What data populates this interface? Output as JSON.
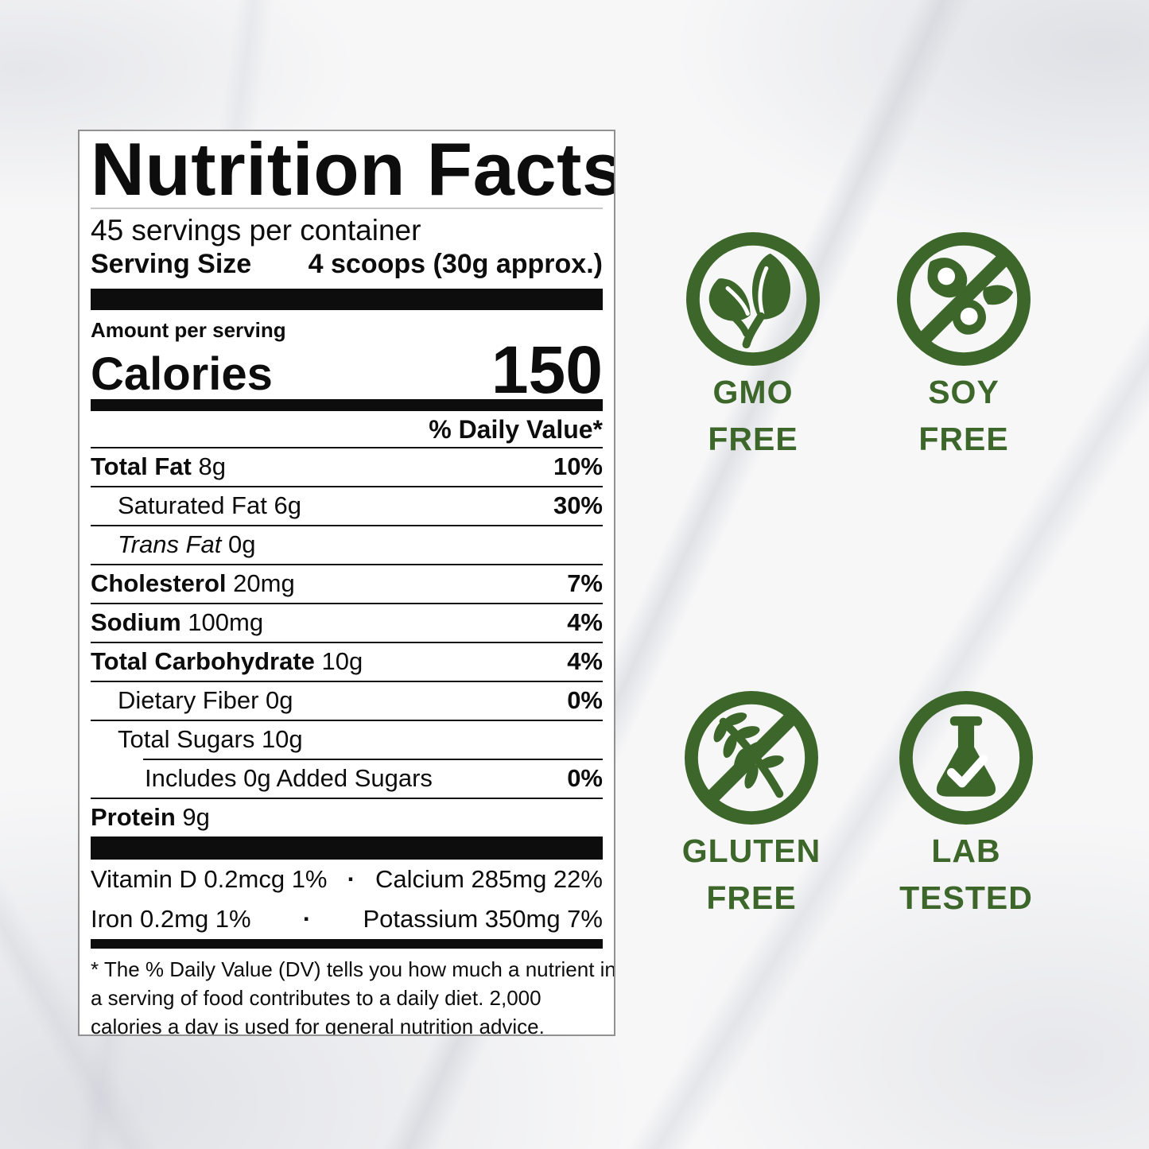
{
  "label": {
    "title": "Nutrition Facts",
    "servings_per_container": "45 servings per container",
    "serving_size_label": "Serving Size",
    "serving_size_value": "4 scoops (30g approx.)",
    "amount_per_serving": "Amount per serving",
    "calories_label": "Calories",
    "calories_value": "150",
    "daily_value_header": "% Daily Value*",
    "rows": [
      {
        "name": "Total Fat",
        "amount": "8g",
        "pct": "10%",
        "bold": true,
        "indent": 0
      },
      {
        "name": "Saturated Fat",
        "amount": "6g",
        "pct": "30%",
        "bold": false,
        "indent": 1
      },
      {
        "name": "Trans Fat",
        "amount": "0g",
        "pct": "",
        "bold": false,
        "italic": true,
        "indent": 1
      },
      {
        "name": "Cholesterol",
        "amount": "20mg",
        "pct": "7%",
        "bold": true,
        "indent": 0
      },
      {
        "name": "Sodium",
        "amount": "100mg",
        "pct": "4%",
        "bold": true,
        "indent": 0
      },
      {
        "name": "Total Carbohydrate",
        "amount": "10g",
        "pct": "4%",
        "bold": true,
        "indent": 0
      },
      {
        "name": "Dietary Fiber",
        "amount": "0g",
        "pct": "0%",
        "bold": false,
        "indent": 1
      },
      {
        "name": "Total Sugars",
        "amount": "10g",
        "pct": "",
        "bold": false,
        "indent": 1,
        "rule_after": "indent"
      },
      {
        "name": "Includes 0g Added Sugars",
        "amount": "",
        "pct": "0%",
        "bold": false,
        "indent": 2
      },
      {
        "name": "Protein",
        "amount": "9g",
        "pct": "",
        "bold": true,
        "indent": 0
      }
    ],
    "vitamins": [
      {
        "left": "Vitamin D 0.2mcg 1%",
        "dot": "·",
        "right": "Calcium 285mg 22%"
      },
      {
        "left": "Iron 0.2mg 1%",
        "dot": "·",
        "right": "Potassium 350mg 7%"
      }
    ],
    "footnote_lines": [
      "* The % Daily Value (DV) tells you how much a nutrient in",
      "a serving of food contributes to a daily diet. 2,000",
      "calories a day is used for general nutrition advice."
    ]
  },
  "badges": [
    {
      "icon": "leaf-icon",
      "lines": [
        "GMO",
        "FREE"
      ]
    },
    {
      "icon": "no-soy-icon",
      "lines": [
        "SOY",
        "FREE"
      ]
    },
    {
      "icon": "no-gluten-icon",
      "lines": [
        "GLUTEN",
        "FREE"
      ]
    },
    {
      "icon": "lab-flask-icon",
      "lines": [
        "LAB",
        "TESTED"
      ]
    }
  ],
  "colors": {
    "badge_green": "#3d672a",
    "label_border": "#919191",
    "bar_black": "#0d0d0d"
  }
}
